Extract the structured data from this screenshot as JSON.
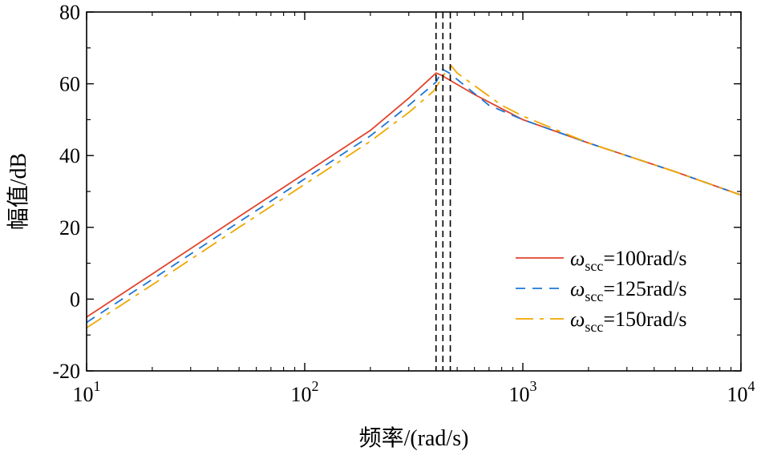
{
  "chart_data": {
    "type": "line",
    "xscale": "log",
    "xlim": [
      10,
      10000
    ],
    "ylim": [
      -20,
      80
    ],
    "xlabel": "频率/(rad/s)",
    "ylabel": "幅值/dB",
    "x_ticks": [
      {
        "value": 10,
        "base": "10",
        "exp": "1"
      },
      {
        "value": 100,
        "base": "10",
        "exp": "2"
      },
      {
        "value": 1000,
        "base": "10",
        "exp": "3"
      },
      {
        "value": 10000,
        "base": "10",
        "exp": "4"
      }
    ],
    "y_ticks": [
      -20,
      0,
      20,
      40,
      60,
      80
    ],
    "vlines": [
      400,
      430,
      465
    ],
    "legend_position": "lower-right",
    "series": [
      {
        "name": "ω_scc=100rad/s",
        "symbol": "ω",
        "subscript": "scc",
        "suffix": "=100rad/s",
        "color": "#e0442b",
        "style": "solid",
        "points": [
          [
            10,
            -5
          ],
          [
            20,
            7
          ],
          [
            50,
            23
          ],
          [
            100,
            35
          ],
          [
            200,
            47
          ],
          [
            300,
            56
          ],
          [
            400,
            63
          ],
          [
            420,
            62.5
          ],
          [
            600,
            57
          ],
          [
            1000,
            50
          ],
          [
            2000,
            43.5
          ],
          [
            5000,
            35.5
          ],
          [
            10000,
            29
          ]
        ]
      },
      {
        "name": "ω_scc=125rad/s",
        "symbol": "ω",
        "subscript": "scc",
        "suffix": "=125rad/s",
        "color": "#1f77d4",
        "style": "dashed",
        "points": [
          [
            10,
            -6.5
          ],
          [
            20,
            5.5
          ],
          [
            50,
            21.5
          ],
          [
            100,
            33.5
          ],
          [
            200,
            45.5
          ],
          [
            300,
            54
          ],
          [
            400,
            60.5
          ],
          [
            430,
            64
          ],
          [
            460,
            63
          ],
          [
            700,
            54
          ],
          [
            1000,
            50
          ],
          [
            2000,
            43.5
          ],
          [
            5000,
            35.5
          ],
          [
            10000,
            29
          ]
        ]
      },
      {
        "name": "ω_scc=150rad/s",
        "symbol": "ω",
        "subscript": "scc",
        "suffix": "=150rad/s",
        "color": "#f0a800",
        "style": "dashdot",
        "points": [
          [
            10,
            -8
          ],
          [
            20,
            4
          ],
          [
            50,
            20
          ],
          [
            100,
            32
          ],
          [
            200,
            44
          ],
          [
            300,
            52
          ],
          [
            390,
            58
          ],
          [
            440,
            63
          ],
          [
            470,
            65
          ],
          [
            500,
            63
          ],
          [
            800,
            54
          ],
          [
            1000,
            51
          ],
          [
            2000,
            43.5
          ],
          [
            5000,
            35.5
          ],
          [
            10000,
            29
          ]
        ]
      }
    ]
  }
}
